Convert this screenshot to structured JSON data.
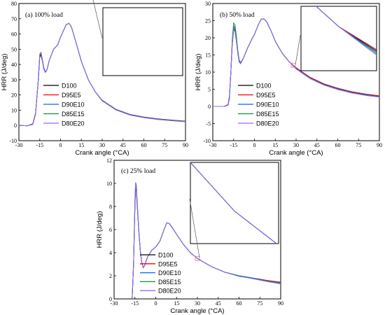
{
  "chart_data": [
    {
      "type": "line",
      "title": "(a) 100% load",
      "xlabel": "Crank angle (°CA)",
      "ylabel": "HRR (J/deg)",
      "xlim": [
        -30,
        90
      ],
      "ylim": [
        -10,
        80
      ],
      "xticks": [
        "-30",
        "-15",
        "0",
        "15",
        "30",
        "45",
        "60",
        "75",
        "90"
      ],
      "yticks": [
        "-10",
        "0",
        "10",
        "20",
        "30",
        "40",
        "50",
        "60",
        "70",
        "80"
      ],
      "legend_position": "right",
      "inset_zoom": true,
      "series": [
        {
          "name": "D100",
          "x": [
            -30,
            -24,
            -20,
            -18,
            -16,
            -15,
            -14,
            -13,
            -12,
            -11,
            -10,
            -8,
            -5,
            -2,
            0,
            2,
            4,
            6,
            7,
            8,
            10,
            15,
            20,
            25,
            30,
            40,
            50,
            60,
            70,
            80,
            90
          ],
          "values": [
            0,
            -0.2,
            1,
            8,
            30,
            45,
            46,
            42,
            37,
            35,
            36,
            43,
            50,
            53,
            58,
            62,
            66,
            67,
            66,
            64,
            58,
            42,
            30,
            22,
            16.5,
            10.5,
            7.2,
            5.5,
            4.3,
            3.5,
            2.8
          ]
        },
        {
          "name": "D95E5",
          "x": [
            -30,
            -24,
            -20,
            -18,
            -16,
            -15,
            -14,
            -13,
            -12,
            -11,
            -10,
            -8,
            -5,
            -2,
            0,
            2,
            4,
            6,
            7,
            8,
            10,
            15,
            20,
            25,
            30,
            40,
            50,
            60,
            70,
            80,
            90
          ],
          "values": [
            0,
            -0.2,
            0.9,
            7.8,
            30.3,
            45.5,
            46.5,
            42,
            37,
            35,
            36,
            43,
            50,
            53,
            58,
            62,
            66,
            67,
            66,
            64,
            58,
            42,
            30,
            22,
            16.4,
            10.4,
            7.1,
            5.4,
            4.2,
            3.4,
            2.7
          ]
        },
        {
          "name": "D90E10",
          "x": [
            -30,
            -24,
            -20,
            -18,
            -16,
            -15,
            -14,
            -13,
            -12,
            -11,
            -10,
            -8,
            -5,
            -2,
            0,
            2,
            4,
            6,
            7,
            8,
            10,
            15,
            20,
            25,
            30,
            40,
            50,
            60,
            70,
            80,
            90
          ],
          "values": [
            0,
            -0.2,
            0.8,
            7.6,
            30.6,
            46,
            47,
            42.3,
            37,
            35,
            36,
            43,
            50,
            53,
            58,
            62,
            66,
            67,
            66,
            64,
            58,
            42,
            30,
            22,
            16.3,
            10.3,
            7.0,
            5.3,
            4.1,
            3.3,
            2.6
          ]
        },
        {
          "name": "D85E15",
          "x": [
            -30,
            -24,
            -20,
            -18,
            -16,
            -15,
            -14,
            -13,
            -12,
            -11,
            -10,
            -8,
            -5,
            -2,
            0,
            2,
            4,
            6,
            7,
            8,
            10,
            15,
            20,
            25,
            30,
            40,
            50,
            60,
            70,
            80,
            90
          ],
          "values": [
            0,
            -0.2,
            0.7,
            7.4,
            30.9,
            46.5,
            47.5,
            42.6,
            37.5,
            35.5,
            36,
            43,
            50,
            53,
            58,
            62,
            66,
            67,
            66,
            64,
            58,
            42,
            30,
            22,
            16.2,
            10.2,
            6.9,
            5.2,
            4.0,
            3.2,
            2.5
          ]
        },
        {
          "name": "D80E20",
          "x": [
            -30,
            -24,
            -20,
            -18,
            -16,
            -15,
            -14,
            -13,
            -12,
            -11,
            -10,
            -8,
            -5,
            -2,
            0,
            2,
            4,
            6,
            7,
            8,
            10,
            15,
            20,
            25,
            30,
            40,
            50,
            60,
            70,
            80,
            90
          ],
          "values": [
            0,
            -0.2,
            0.6,
            7.2,
            31.2,
            47,
            48,
            43,
            38,
            35.5,
            36,
            43,
            50,
            53,
            58,
            62,
            66,
            67,
            66,
            64,
            58,
            42,
            30,
            22,
            16.1,
            10.1,
            6.8,
            5.1,
            3.9,
            3.1,
            2.4
          ]
        }
      ]
    },
    {
      "type": "line",
      "title": "(b) 50% load",
      "xlabel": "Crank angle (°CA)",
      "ylabel": "HRR (J/deg)",
      "xlim": [
        -30,
        90
      ],
      "ylim": [
        -10,
        30
      ],
      "xticks": [
        "-30",
        "-15",
        "0",
        "15",
        "30",
        "45",
        "60",
        "75",
        "90"
      ],
      "yticks": [
        "-10",
        "-5",
        "0",
        "5",
        "10",
        "15",
        "20",
        "25",
        "30"
      ],
      "legend_position": "right",
      "inset_zoom": true,
      "series": [
        {
          "name": "D100",
          "x": [
            -30,
            -22,
            -19,
            -18,
            -17,
            -16,
            -15,
            -14,
            -13,
            -12,
            -11,
            -10,
            -8,
            -5,
            -2,
            0,
            3,
            5,
            7,
            9,
            12,
            15,
            20,
            25,
            30,
            40,
            50,
            60,
            70,
            80,
            90
          ],
          "values": [
            0,
            0,
            0.5,
            3,
            10,
            18,
            22.5,
            22,
            19,
            15.5,
            13,
            12.5,
            14,
            17,
            19.5,
            21,
            24,
            25.5,
            25.5,
            24.5,
            22,
            19,
            15.5,
            13,
            11.2,
            8.4,
            6.5,
            5.2,
            4.2,
            3.5,
            3.0
          ]
        },
        {
          "name": "D95E5",
          "x": [
            -30,
            -22,
            -19,
            -18,
            -17,
            -16,
            -15,
            -14,
            -13,
            -12,
            -11,
            -10,
            -8,
            -5,
            -2,
            0,
            3,
            5,
            7,
            9,
            12,
            15,
            20,
            25,
            30,
            40,
            50,
            60,
            70,
            80,
            90
          ],
          "values": [
            0,
            0,
            0.45,
            2.8,
            10,
            18.5,
            23,
            22.5,
            19.5,
            15.8,
            13.2,
            12.6,
            14,
            17,
            19.5,
            21,
            24,
            25.5,
            25.5,
            24.5,
            22,
            19,
            15.5,
            13,
            11.3,
            8.5,
            6.6,
            5.3,
            4.3,
            3.6,
            3.1
          ]
        },
        {
          "name": "D90E10",
          "x": [
            -30,
            -22,
            -19,
            -18,
            -17,
            -16,
            -15,
            -14,
            -13,
            -12,
            -11,
            -10,
            -8,
            -5,
            -2,
            0,
            3,
            5,
            7,
            9,
            12,
            15,
            20,
            25,
            30,
            40,
            50,
            60,
            70,
            80,
            90
          ],
          "values": [
            0,
            0,
            0.4,
            2.6,
            10,
            19,
            23.5,
            23,
            20,
            16,
            13.4,
            12.7,
            14,
            17,
            19.5,
            21,
            24,
            25.5,
            25.5,
            24.5,
            22,
            19,
            15.5,
            13,
            11.1,
            8.3,
            6.4,
            5.1,
            4.1,
            3.4,
            2.9
          ]
        },
        {
          "name": "D85E15",
          "x": [
            -30,
            -22,
            -19,
            -18,
            -17,
            -16,
            -15,
            -14,
            -13,
            -12,
            -11,
            -10,
            -8,
            -5,
            -2,
            0,
            3,
            5,
            7,
            9,
            12,
            15,
            20,
            25,
            30,
            40,
            50,
            60,
            70,
            80,
            90
          ],
          "values": [
            0,
            0,
            0.35,
            2.4,
            10,
            19.5,
            24.3,
            23.8,
            20.5,
            16.3,
            13.6,
            12.8,
            14,
            17,
            19.5,
            21,
            24,
            25.5,
            25.5,
            24.5,
            22,
            19,
            15.5,
            13,
            11.0,
            8.2,
            6.3,
            5.0,
            4.0,
            3.3,
            2.8
          ]
        },
        {
          "name": "D80E20",
          "x": [
            -30,
            -22,
            -19,
            -18,
            -17,
            -16,
            -15,
            -14,
            -13,
            -12,
            -11,
            -10,
            -8,
            -5,
            -2,
            0,
            3,
            5,
            7,
            9,
            12,
            15,
            20,
            25,
            30,
            40,
            50,
            60,
            70,
            80,
            90
          ],
          "values": [
            0,
            0,
            0.3,
            2.2,
            9.8,
            18.2,
            22.3,
            21.8,
            19,
            15.5,
            13.2,
            12.6,
            14,
            17,
            19.5,
            21,
            24,
            25.5,
            25.5,
            24.5,
            22,
            19,
            15.5,
            13,
            10.9,
            8.1,
            6.2,
            4.9,
            3.9,
            3.2,
            2.7
          ]
        }
      ]
    },
    {
      "type": "line",
      "title": "(c) 25% load",
      "xlabel": "Crank angle (°CA)",
      "ylabel": "HRR (J/deg)",
      "xlim": [
        -30,
        90
      ],
      "ylim": [
        0,
        12
      ],
      "xticks": [
        "-30",
        "-15",
        "0",
        "15",
        "30",
        "45",
        "60",
        "75",
        "90"
      ],
      "yticks": [
        "0",
        "2",
        "4",
        "6",
        "8",
        "10",
        "12"
      ],
      "legend_position": "right",
      "inset_zoom": true,
      "series": [
        {
          "name": "D100",
          "x": [
            -17,
            -16,
            -15,
            -14.5,
            -14,
            -13,
            -12,
            -11,
            -10,
            -9,
            -8,
            -6,
            -3,
            0,
            3,
            6,
            8,
            10,
            15,
            20,
            25,
            30,
            40,
            50,
            60,
            70,
            80,
            90
          ],
          "values": [
            0,
            3,
            8,
            9.6,
            9.4,
            7.4,
            5.5,
            4.0,
            3.1,
            2.7,
            2.9,
            3.6,
            4.2,
            4.5,
            5.0,
            6.0,
            6.6,
            6.5,
            5.6,
            4.7,
            4.0,
            3.5,
            2.8,
            2.3,
            2.0,
            1.8,
            1.6,
            1.4
          ]
        },
        {
          "name": "D95E5",
          "x": [
            -17,
            -16,
            -15,
            -14.5,
            -14,
            -13,
            -12,
            -11,
            -10,
            -9,
            -8,
            -6,
            -3,
            0,
            3,
            6,
            8,
            10,
            15,
            20,
            25,
            30,
            40,
            50,
            60,
            70,
            80,
            90
          ],
          "values": [
            0,
            3,
            8.2,
            9.8,
            9.6,
            7.5,
            5.5,
            4.0,
            3.1,
            2.7,
            2.9,
            3.6,
            4.2,
            4.5,
            5.0,
            6.0,
            6.6,
            6.5,
            5.6,
            4.7,
            4.0,
            3.5,
            2.8,
            2.3,
            2.0,
            1.8,
            1.6,
            1.45
          ]
        },
        {
          "name": "D90E10",
          "x": [
            -17,
            -16,
            -15,
            -14.5,
            -14,
            -13,
            -12,
            -11,
            -10,
            -9,
            -8,
            -6,
            -3,
            0,
            3,
            6,
            8,
            10,
            15,
            20,
            25,
            30,
            40,
            50,
            60,
            70,
            80,
            90
          ],
          "values": [
            0,
            3,
            8.4,
            9.9,
            9.7,
            7.6,
            5.6,
            4.0,
            3.1,
            2.7,
            2.9,
            3.6,
            4.2,
            4.5,
            5.0,
            6.0,
            6.6,
            6.5,
            5.6,
            4.7,
            4.0,
            3.5,
            2.8,
            2.3,
            2.0,
            1.8,
            1.55,
            1.4
          ]
        },
        {
          "name": "D85E15",
          "x": [
            -17,
            -16,
            -15,
            -14.5,
            -14,
            -13,
            -12,
            -11,
            -10,
            -9,
            -8,
            -6,
            -3,
            0,
            3,
            6,
            8,
            10,
            15,
            20,
            25,
            30,
            40,
            50,
            60,
            70,
            80,
            90
          ],
          "values": [
            0,
            3,
            8.5,
            10.0,
            9.8,
            7.6,
            5.6,
            4.0,
            3.1,
            2.7,
            2.9,
            3.6,
            4.2,
            4.5,
            5.0,
            6.0,
            6.6,
            6.5,
            5.6,
            4.7,
            4.0,
            3.5,
            2.8,
            2.3,
            2.0,
            1.75,
            1.55,
            1.35
          ]
        },
        {
          "name": "D80E20",
          "x": [
            -17,
            -16,
            -15,
            -14.5,
            -14,
            -13,
            -12,
            -11,
            -10,
            -9,
            -8,
            -6,
            -3,
            0,
            3,
            6,
            8,
            10,
            15,
            20,
            25,
            30,
            40,
            50,
            60,
            70,
            80,
            90
          ],
          "values": [
            0,
            3.1,
            8.6,
            10.1,
            9.9,
            7.7,
            5.7,
            4.0,
            3.1,
            2.7,
            2.9,
            3.6,
            4.2,
            4.5,
            5.0,
            6.0,
            6.6,
            6.5,
            5.6,
            4.7,
            4.0,
            3.5,
            2.8,
            2.3,
            1.95,
            1.75,
            1.5,
            1.3
          ]
        }
      ]
    }
  ],
  "series_colors": {
    "D100": "#000000",
    "D95E5": "#ff0000",
    "D90E10": "#0066ff",
    "D85E15": "#009933",
    "D80E20": "#9966ff"
  }
}
